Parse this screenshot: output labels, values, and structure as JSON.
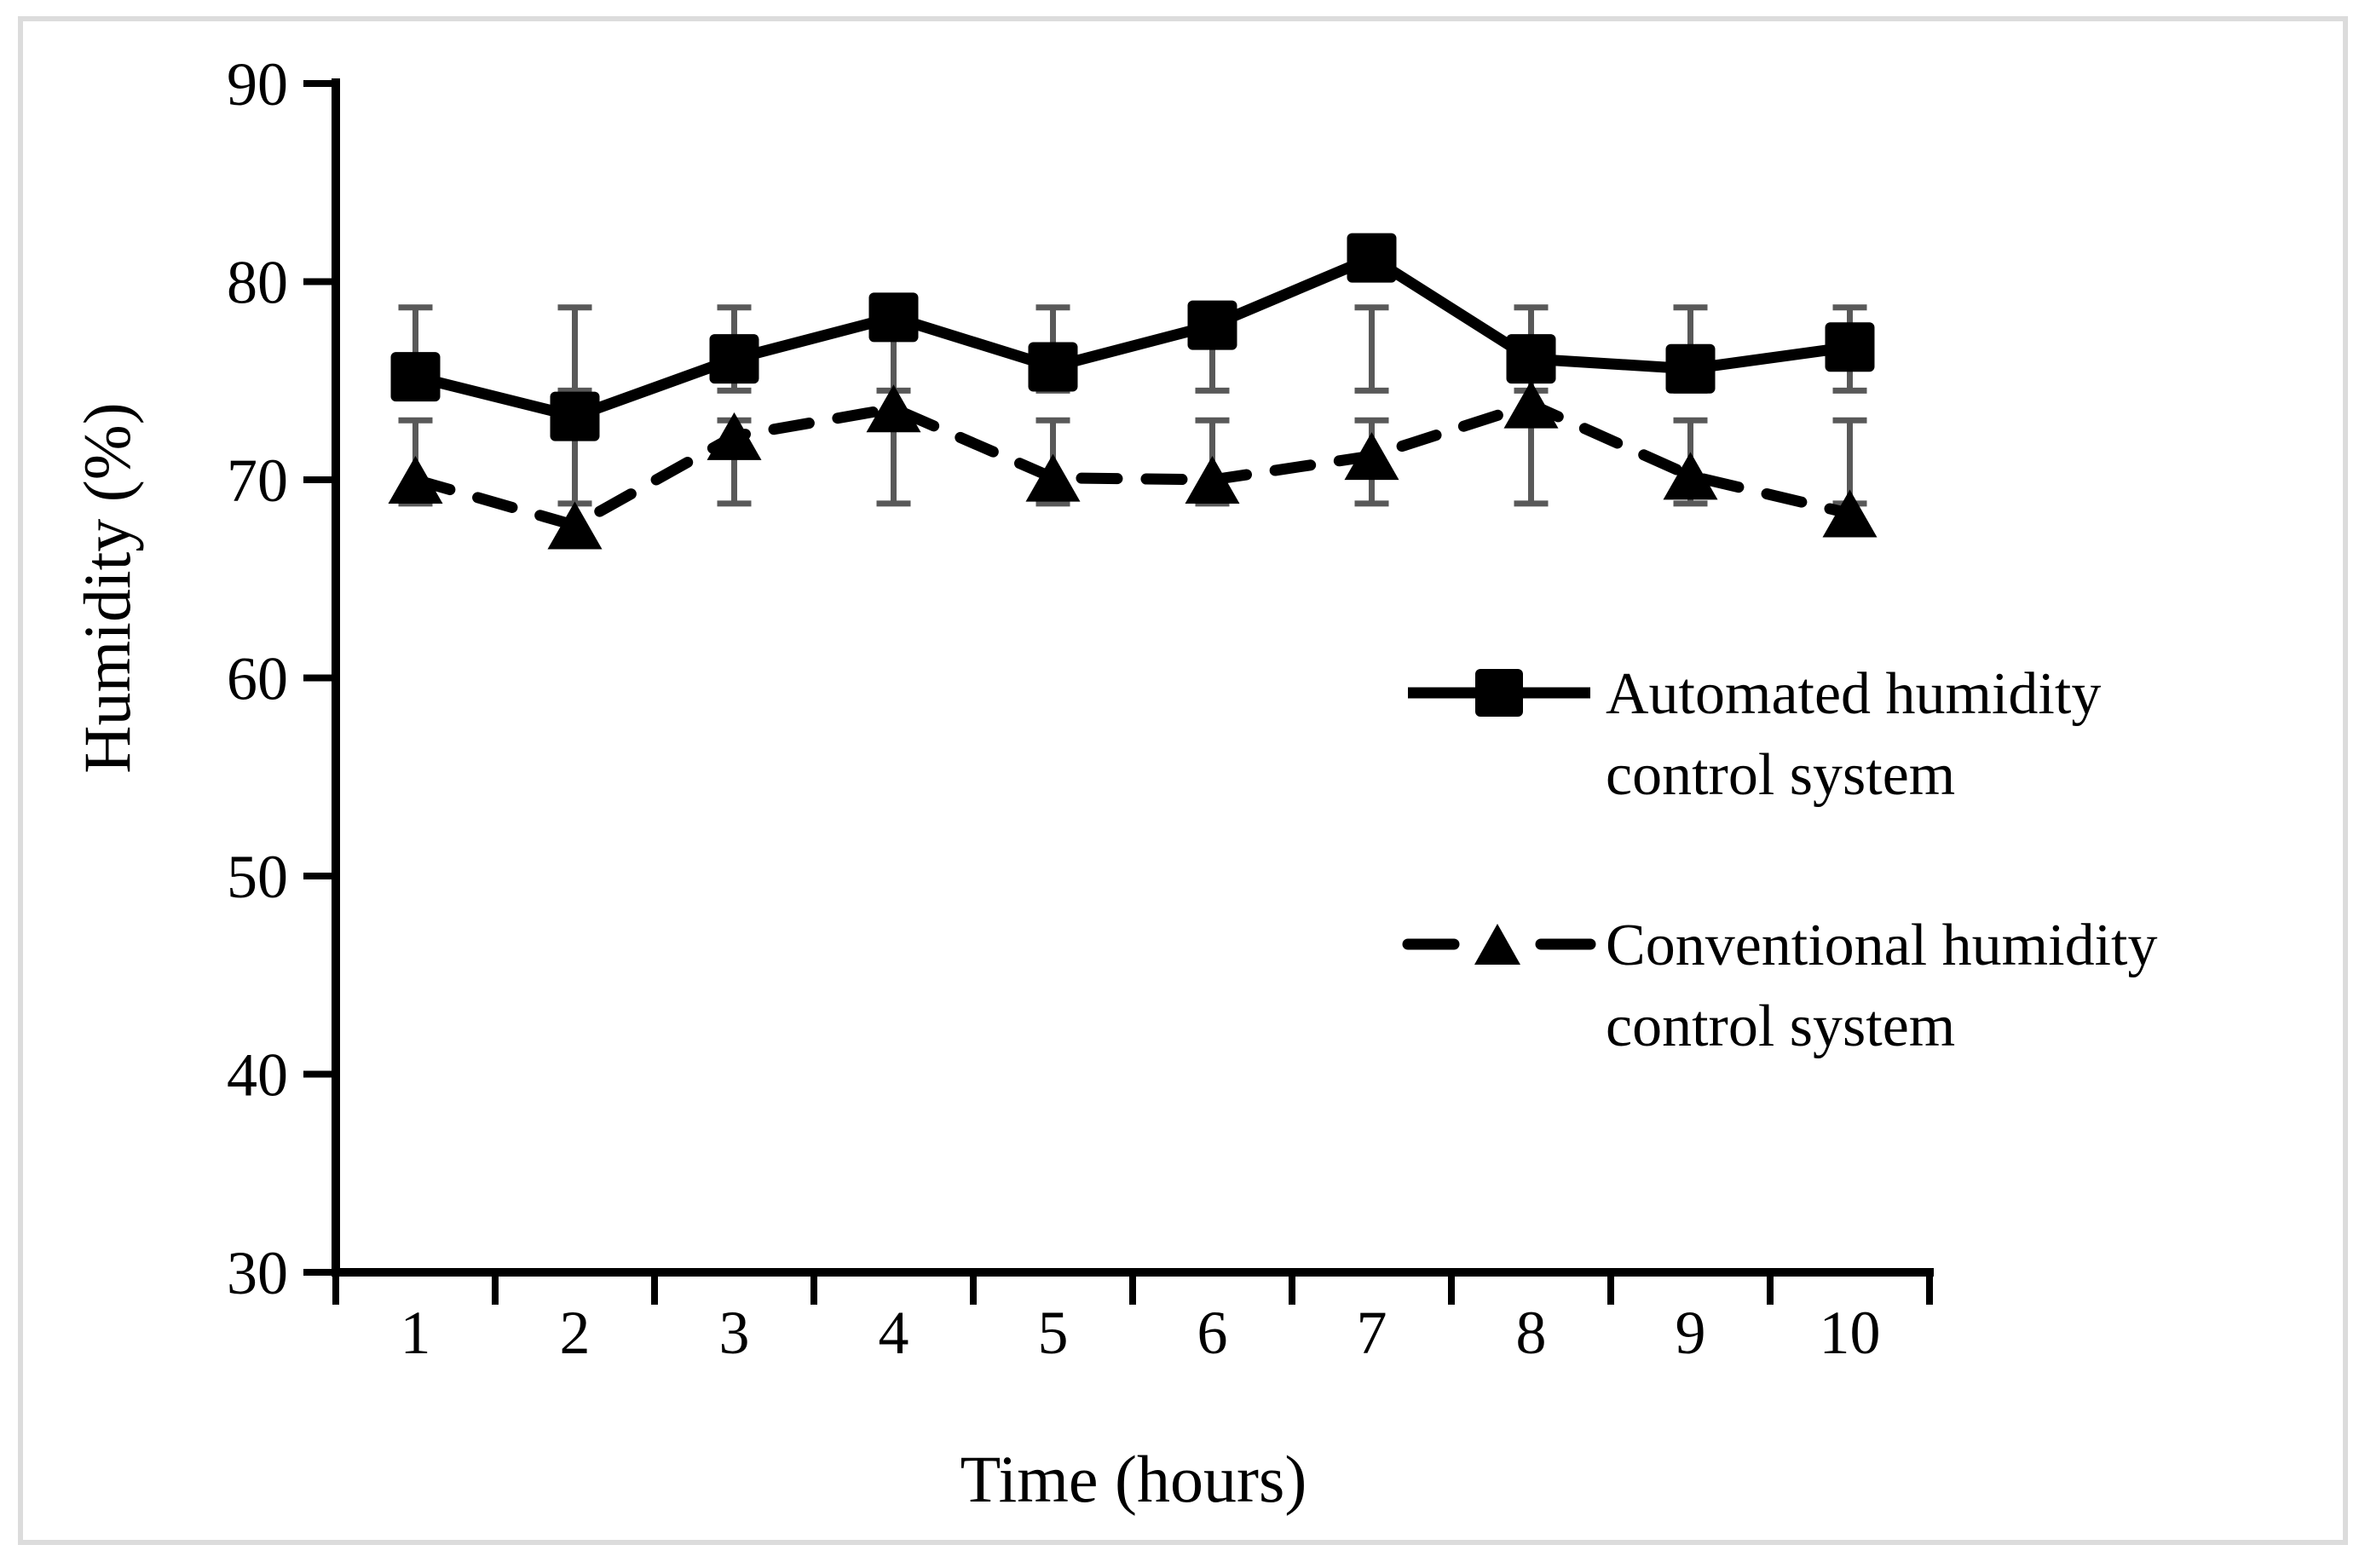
{
  "figure": {
    "background": "#ffffff",
    "border_color": "#dcdcdc",
    "axis_color": "#000000",
    "error_bar_color": "#595959"
  },
  "chart_data": {
    "type": "line",
    "x": [
      1,
      2,
      3,
      4,
      5,
      6,
      7,
      8,
      9,
      10
    ],
    "xlabel": "Time (hours)",
    "ylabel": "Humidity (%)",
    "ylim": [
      30,
      90
    ],
    "yticks": [
      90,
      80,
      70,
      60,
      50,
      40,
      30
    ],
    "grid": false,
    "legend_position": "center-right-inside",
    "series": [
      {
        "name": "Automated humidity control system",
        "marker": "square",
        "line_style": "solid",
        "color": "#000000",
        "values": [
          75.2,
          73.2,
          76.1,
          78.2,
          75.7,
          77.8,
          81.2,
          76.1,
          75.6,
          76.7
        ],
        "error_band": {
          "low": 74.5,
          "high": 78.7
        }
      },
      {
        "name": "Conventional humidity control system",
        "marker": "triangle",
        "line_style": "dashed",
        "color": "#000000",
        "values": [
          70.0,
          67.7,
          72.2,
          73.6,
          70.1,
          70.0,
          71.2,
          73.8,
          70.2,
          68.3
        ],
        "error_band": {
          "low": 68.8,
          "high": 73.0
        }
      }
    ],
    "legend": [
      {
        "line1": "Automated humidity",
        "line2": "control system"
      },
      {
        "line1": "Conventional humidity",
        "line2": "control system"
      }
    ]
  }
}
